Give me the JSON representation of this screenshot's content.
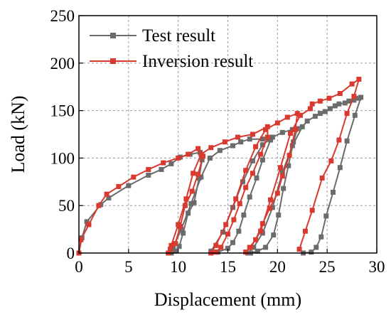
{
  "chart_data": {
    "type": "line",
    "xlabel": "Displacement (mm)",
    "ylabel": "Load (kN)",
    "xlim": [
      0,
      30
    ],
    "ylim": [
      0,
      250
    ],
    "xticks": [
      "0",
      "5",
      "10",
      "15",
      "20",
      "25",
      "30"
    ],
    "yticks": [
      "0",
      "50",
      "100",
      "150",
      "200",
      "250"
    ],
    "grid": true,
    "legend_position": "top-left",
    "series": [
      {
        "name": "Test result",
        "color": "#6b6b6b",
        "marker": "square",
        "x": [
          0,
          0.3,
          0.8,
          2.2,
          3.0,
          5.0,
          7.0,
          8.3,
          9.3,
          10.2,
          11.2,
          12.2,
          12.4,
          12.1,
          11.6,
          11.0,
          10.5,
          10.1,
          9.7,
          9.3,
          9.5,
          10.3,
          11.3,
          12.3,
          13.2,
          14.2,
          15.5,
          16.3,
          17.2,
          18.5,
          19.3,
          18.5,
          17.9,
          17.2,
          16.6,
          16.1,
          15.5,
          15.0,
          14.0,
          13.3,
          13.3,
          14.5,
          15.5,
          16.5,
          17.5,
          18.5,
          19.5,
          20.5,
          21.5,
          22.0,
          21.6,
          21.1,
          20.6,
          20.1,
          19.6,
          18.8,
          18.0,
          17.3,
          17.0,
          17.6,
          18.5,
          19.5,
          20.5,
          21.5,
          22.5,
          23.0,
          23.8,
          24.3,
          24.8,
          25.3,
          25.8,
          26.2,
          26.8,
          27.2,
          27.7,
          28.2,
          28.4,
          27.8,
          27.0,
          26.3,
          25.6,
          24.9,
          24.4,
          23.9,
          23.4,
          22.6
        ],
        "y": [
          0,
          16,
          33,
          51,
          58,
          71,
          82,
          88,
          94,
          101,
          104,
          106,
          98,
          79,
          53,
          42,
          21,
          7,
          2,
          0,
          6,
          25,
          52,
          80,
          100,
          108,
          113,
          117,
          120,
          120,
          119,
          98,
          79,
          59,
          40,
          23,
          11,
          5,
          1,
          0,
          2,
          22,
          48,
          75,
          97,
          114,
          122,
          127,
          130,
          131,
          117,
          92,
          68,
          40,
          19,
          6,
          2,
          0,
          0,
          6,
          21,
          48,
          85,
          113,
          133,
          139,
          144,
          147,
          149,
          152,
          155,
          157,
          158,
          160,
          161,
          163,
          164,
          145,
          118,
          90,
          64,
          39,
          17,
          6,
          1,
          0
        ]
      },
      {
        "name": "Inversion result",
        "color": "#d9392e",
        "marker": "square",
        "x": [
          0,
          0.2,
          1.0,
          2.0,
          2.8,
          4.0,
          5.5,
          7.0,
          8.5,
          10.0,
          11.0,
          12.0,
          12.5,
          12.0,
          11.4,
          10.7,
          10.2,
          9.7,
          9.2,
          9.0,
          9.3,
          10.0,
          10.8,
          11.5,
          12.3,
          13.3,
          14.7,
          16.0,
          17.5,
          19.0,
          19.0,
          18.3,
          17.5,
          16.8,
          16.2,
          15.6,
          15.0,
          14.3,
          13.8,
          13.3,
          13.8,
          14.8,
          15.8,
          16.8,
          17.8,
          18.8,
          20.0,
          21.0,
          22.0,
          21.8,
          21.2,
          20.5,
          20.0,
          19.2,
          18.5,
          17.8,
          17.2,
          16.8,
          17.3,
          18.3,
          19.3,
          20.3,
          21.3,
          22.3,
          23.3,
          23.5,
          24.3,
          25.2,
          26.3,
          27.5,
          28.2,
          27.7,
          27.0,
          26.2,
          25.4,
          24.5,
          23.5,
          22.8,
          22.2
        ],
        "y": [
          0,
          14,
          30,
          50,
          62,
          70,
          80,
          88,
          95,
          100,
          104,
          110,
          102,
          83,
          65,
          50,
          28,
          10,
          4,
          0,
          8,
          30,
          57,
          84,
          104,
          111,
          117,
          122,
          125,
          133,
          122,
          104,
          84,
          69,
          52,
          35,
          20,
          6,
          1,
          0,
          8,
          30,
          57,
          87,
          112,
          130,
          137,
          143,
          147,
          130,
          103,
          81,
          63,
          47,
          31,
          14,
          6,
          1,
          6,
          23,
          56,
          90,
          126,
          145,
          152,
          157,
          160,
          163,
          168,
          178,
          183,
          165,
          147,
          119,
          97,
          79,
          45,
          23,
          4
        ]
      }
    ]
  }
}
